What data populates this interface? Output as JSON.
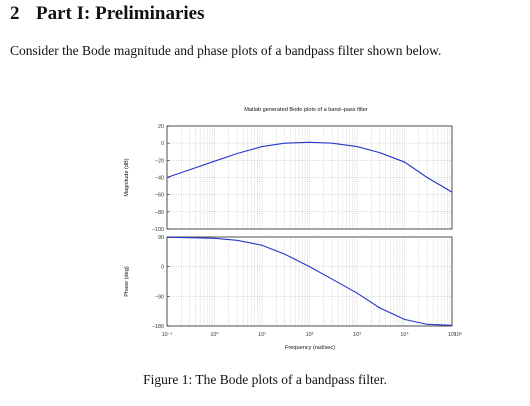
{
  "section": {
    "number": "2",
    "title": "Part I: Preliminaries"
  },
  "intro": "Consider the Bode magnitude and phase plots of a bandpass filter shown below.",
  "caption": "Figure 1: The Bode plots of a bandpass filter.",
  "chart_data": [
    {
      "type": "line",
      "title": "Matlab generated Bode plots of a band–pass filter",
      "xlabel": "",
      "ylabel": "Magnitude (dB)",
      "xscale": "log",
      "xlim": [
        0.1,
        100000
      ],
      "ylim": [
        -100,
        20
      ],
      "yticks": [
        20,
        0,
        -20,
        -40,
        -60,
        -80,
        -100
      ],
      "grid": true,
      "series": [
        {
          "x": [
            0.1,
            0.3,
            1,
            3,
            10,
            30,
            100,
            300,
            1000,
            3000,
            10000,
            30000,
            100000
          ],
          "values": [
            -40,
            -31,
            -21,
            -12,
            -4,
            0,
            1,
            0,
            -4,
            -11,
            -22,
            -40,
            -57
          ]
        }
      ]
    },
    {
      "type": "line",
      "xlabel": "Frequency  (rad/sec)",
      "ylabel": "Phase (deg)",
      "xscale": "log",
      "xlim": [
        0.1,
        100000
      ],
      "ylim": [
        -180,
        90
      ],
      "yticks": [
        90,
        0,
        -90,
        -180
      ],
      "xticks": [
        "10⁻¹",
        "10⁰",
        "10¹",
        "10²",
        "10³",
        "10⁴",
        "10⁵",
        "10⁶"
      ],
      "grid": true,
      "series": [
        {
          "x": [
            0.1,
            0.3,
            1,
            3,
            10,
            30,
            100,
            300,
            1000,
            3000,
            10000,
            30000,
            100000
          ],
          "values": [
            89,
            88,
            86,
            80,
            65,
            38,
            0,
            -38,
            -80,
            -125,
            -160,
            -175,
            -178
          ]
        }
      ]
    }
  ]
}
